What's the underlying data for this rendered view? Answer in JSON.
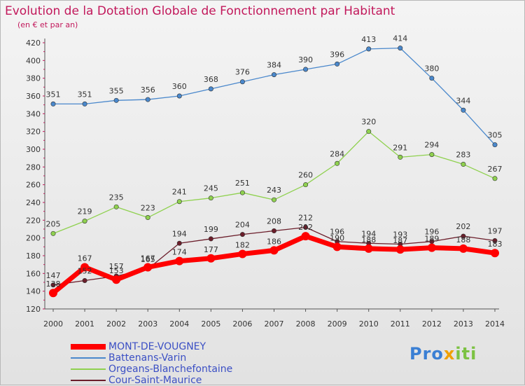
{
  "title": "Evolution de la Dotation Globale de Fonctionnement par Habitant",
  "subtitle": "(en € et par an)",
  "brand": {
    "text": "Proxiti",
    "parts": [
      "Pro",
      "x",
      "iti"
    ]
  },
  "chart_data": {
    "type": "line",
    "x": [
      "2000",
      "2001",
      "2002",
      "2003",
      "2004",
      "2005",
      "2006",
      "2007",
      "2008",
      "2009",
      "2010",
      "2011",
      "2012",
      "2013",
      "2014"
    ],
    "ylim": [
      120,
      420
    ],
    "yticks": [
      120,
      140,
      160,
      180,
      200,
      220,
      240,
      260,
      280,
      300,
      320,
      340,
      360,
      380,
      400,
      420
    ],
    "grid": false,
    "legend_position": "bottom-left",
    "series": [
      {
        "name": "MONT-DE-VOUGNEY",
        "color": "#ff0000",
        "values": [
          138,
          167,
          153,
          167,
          174,
          177,
          182,
          186,
          202,
          190,
          188,
          187,
          189,
          188,
          183
        ]
      },
      {
        "name": "Battenans-Varin",
        "color": "#4a88cc",
        "values": [
          351,
          351,
          355,
          356,
          360,
          368,
          376,
          384,
          390,
          396,
          413,
          414,
          380,
          344,
          305
        ]
      },
      {
        "name": "Orgeans-Blanchefontaine",
        "color": "#8fd14f",
        "values": [
          205,
          219,
          235,
          223,
          241,
          245,
          251,
          243,
          260,
          284,
          320,
          291,
          294,
          283,
          267
        ]
      },
      {
        "name": "Cour-Saint-Maurice",
        "color": "#6b1d2a",
        "values": [
          147,
          152,
          157,
          165,
          194,
          199,
          204,
          208,
          212,
          196,
          194,
          193,
          196,
          202,
          197
        ]
      }
    ]
  }
}
